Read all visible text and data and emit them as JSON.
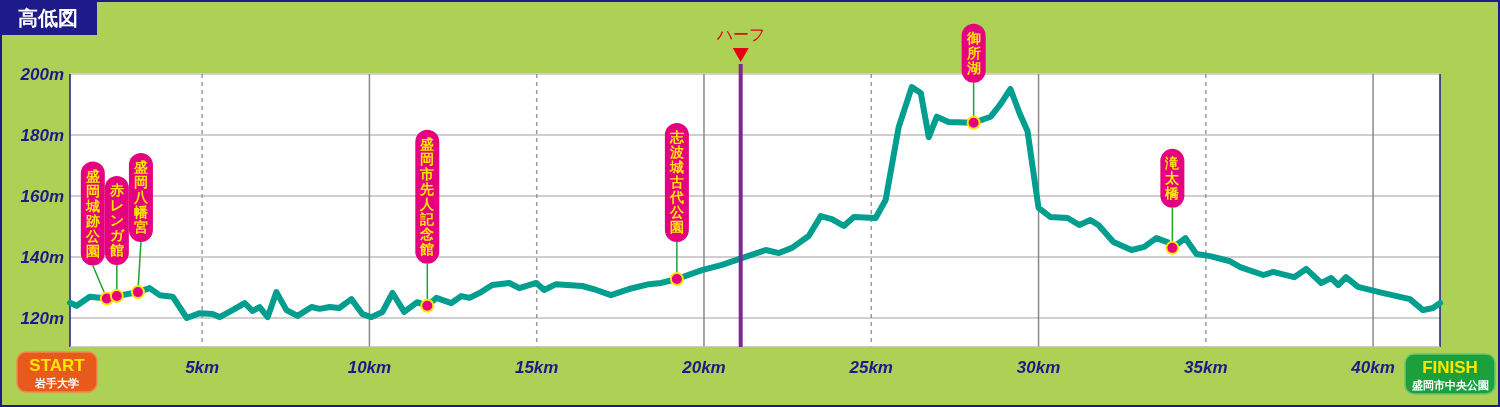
{
  "chart_data": {
    "type": "line",
    "title": "高低図",
    "x": [
      1.05,
      1.25,
      1.64,
      2.15,
      2.45,
      3.08,
      3.43,
      3.73,
      4.12,
      4.54,
      4.93,
      5.31,
      5.52,
      5.91,
      6.27,
      6.51,
      6.72,
      6.96,
      7.22,
      7.52,
      7.85,
      8.27,
      8.51,
      8.81,
      9.1,
      9.46,
      9.79,
      10.06,
      10.39,
      10.69,
      11.04,
      11.43,
      11.73,
      12.0,
      12.45,
      12.75,
      12.99,
      13.34,
      13.67,
      14.18,
      14.48,
      14.99,
      15.22,
      15.58,
      16.36,
      16.78,
      17.22,
      17.76,
      18.36,
      18.72,
      19.19,
      19.94,
      20.54,
      21.04,
      21.85,
      22.24,
      22.63,
      23.13,
      23.49,
      23.82,
      24.18,
      24.48,
      25.13,
      25.43,
      25.82,
      26.21,
      26.48,
      26.72,
      26.96,
      27.31,
      28.06,
      28.57,
      28.87,
      29.16,
      29.43,
      29.67,
      29.85,
      30.0,
      30.36,
      30.87,
      31.22,
      31.55,
      31.79,
      32.24,
      32.78,
      33.16,
      33.52,
      33.85,
      34.0,
      34.39,
      34.72,
      35.13,
      35.7,
      36.03,
      36.72,
      37.01,
      37.64,
      38.0,
      38.45,
      38.75,
      38.96,
      39.19,
      39.55,
      40.18,
      41.1,
      41.49,
      41.79,
      42.0
    ],
    "series": [
      {
        "color": "#009e8e",
        "values": [
          125,
          124,
          127,
          126.4,
          127.2,
          128.5,
          129.8,
          127.5,
          127,
          120,
          121.6,
          121.3,
          120.3,
          122.6,
          124.9,
          122.3,
          123.6,
          120.3,
          128.5,
          122.6,
          120.7,
          123.6,
          123,
          123.6,
          123.3,
          126.2,
          121.3,
          120.3,
          122,
          128.2,
          122,
          125.2,
          124,
          126.6,
          124.9,
          127.2,
          126.6,
          128.5,
          130.8,
          131.5,
          129.8,
          131.5,
          129.2,
          131.1,
          130.5,
          129.2,
          127.5,
          129.5,
          131.1,
          131.5,
          132.8,
          135.7,
          137.4,
          139.3,
          142.3,
          141.3,
          143,
          146.9,
          153.4,
          152.4,
          150.2,
          153.1,
          152.8,
          158.7,
          182.6,
          195.7,
          193.8,
          179.3,
          186,
          184.3,
          184,
          186,
          190.2,
          195.1,
          187.2,
          181.3,
          167.5,
          156.1,
          153.1,
          152.8,
          150.5,
          152.1,
          150.5,
          144.9,
          142.3,
          143.3,
          146.2,
          144.9,
          143,
          146.2,
          141,
          140.3,
          138.7,
          136.7,
          134.1,
          135.1,
          133.4,
          136.1,
          131.5,
          133.1,
          130.8,
          133.4,
          130.2,
          128.5,
          126.2,
          122.6,
          123.3,
          124.9
        ]
      }
    ],
    "xlim": [
      1.05,
      42.0
    ],
    "ylim": [
      110.5,
      200
    ],
    "xticks": [
      {
        "value": 5,
        "label": "5km"
      },
      {
        "value": 10,
        "label": "10km"
      },
      {
        "value": 15,
        "label": "15km"
      },
      {
        "value": 20,
        "label": "20km"
      },
      {
        "value": 25,
        "label": "25km"
      },
      {
        "value": 30,
        "label": "30km"
      },
      {
        "value": 35,
        "label": "35km"
      },
      {
        "value": 40,
        "label": "40km"
      }
    ],
    "yticks": [
      {
        "value": 120,
        "label": "120m"
      },
      {
        "value": 140,
        "label": "140m"
      },
      {
        "value": 160,
        "label": "160m"
      },
      {
        "value": 180,
        "label": "180m"
      },
      {
        "value": 200,
        "label": "200m"
      }
    ],
    "grid": true,
    "marker": "none",
    "ref_lines": [
      {
        "axis": "x",
        "value": 21.0975,
        "label": "ハーフ",
        "color": "#7b2a8f"
      }
    ],
    "annotations": [
      {
        "text": "盛岡城跡公園",
        "x": 2.15,
        "y": 126.4
      },
      {
        "text": "赤レンガ館",
        "x": 2.45,
        "y": 127.2
      },
      {
        "text": "盛岡八幡宮",
        "x": 3.08,
        "y": 128.5
      },
      {
        "text": "盛岡市先人記念館",
        "x": 11.73,
        "y": 124
      },
      {
        "text": "志波城古代公園",
        "x": 19.19,
        "y": 132.8
      },
      {
        "text": "御所湖",
        "x": 28.06,
        "y": 184
      },
      {
        "text": "滝太橋",
        "x": 34.0,
        "y": 143
      },
      "START",
      "岩手大学",
      "FINISH",
      "盛岡市中央公園"
    ]
  }
}
